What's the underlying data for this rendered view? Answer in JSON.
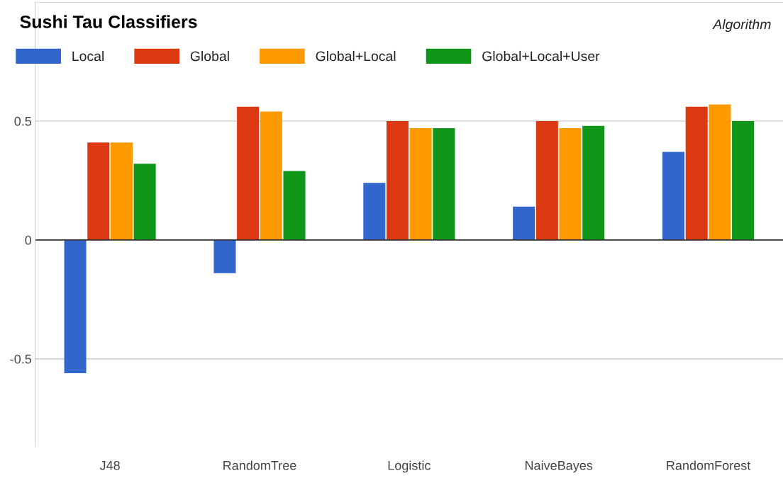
{
  "chart_data": {
    "type": "bar",
    "title": "Sushi Tau Classifiers",
    "annotations": [
      "Algorithm"
    ],
    "categories": [
      "J48",
      "RandomTree",
      "Logistic",
      "NaiveBayes",
      "RandomForest"
    ],
    "series": [
      {
        "name": "Local",
        "color": "#3366cc",
        "values": [
          -0.56,
          -0.14,
          0.24,
          0.14,
          0.37
        ]
      },
      {
        "name": "Global",
        "color": "#dc3912",
        "values": [
          0.41,
          0.56,
          0.5,
          0.5,
          0.56
        ]
      },
      {
        "name": "Global+Local",
        "color": "#ff9900",
        "values": [
          0.41,
          0.54,
          0.47,
          0.47,
          0.57
        ]
      },
      {
        "name": "Global+Local+User",
        "color": "#109618",
        "values": [
          0.32,
          0.29,
          0.47,
          0.48,
          0.5
        ]
      }
    ],
    "ylim": [
      -0.87,
      1.0
    ],
    "yticks": [
      -0.5,
      0,
      0.5,
      {
        "value": 1,
        "label": null
      }
    ],
    "grid": "y",
    "legend": "top left"
  }
}
